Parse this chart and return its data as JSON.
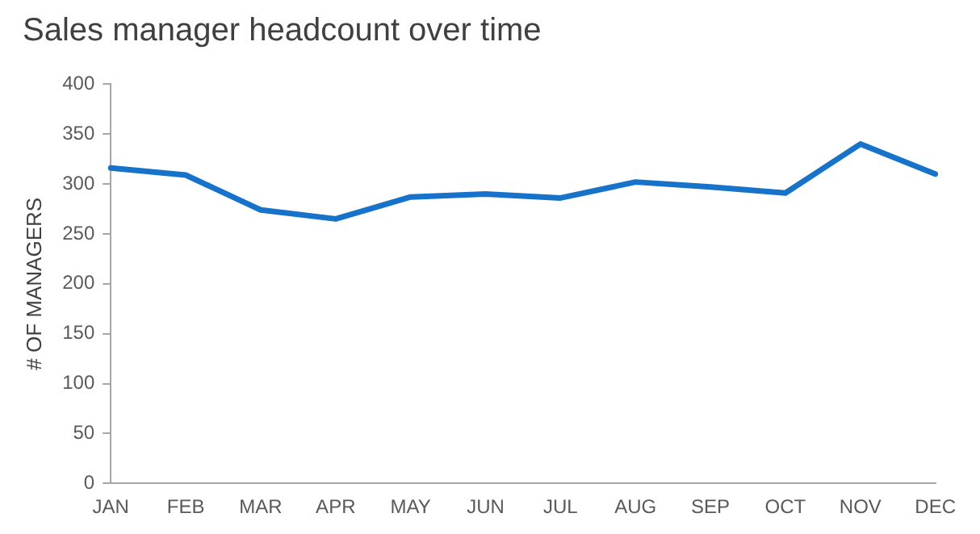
{
  "chart_data": {
    "type": "line",
    "title": "Sales manager headcount over time",
    "ylabel": "# OF MANAGERS",
    "categories": [
      "JAN",
      "FEB",
      "MAR",
      "APR",
      "MAY",
      "JUN",
      "JUL",
      "AUG",
      "SEP",
      "OCT",
      "NOV",
      "DEC"
    ],
    "series": [
      {
        "color": "#1673c9",
        "values": [
          316,
          309,
          274,
          265,
          287,
          290,
          286,
          302,
          297,
          291,
          340,
          310
        ]
      }
    ],
    "ylim": [
      0,
      400
    ],
    "yticks": [
      0,
      50,
      100,
      150,
      200,
      250,
      300,
      350,
      400
    ],
    "grid": false,
    "legend": false,
    "marker": "none",
    "line_style": "solid"
  }
}
